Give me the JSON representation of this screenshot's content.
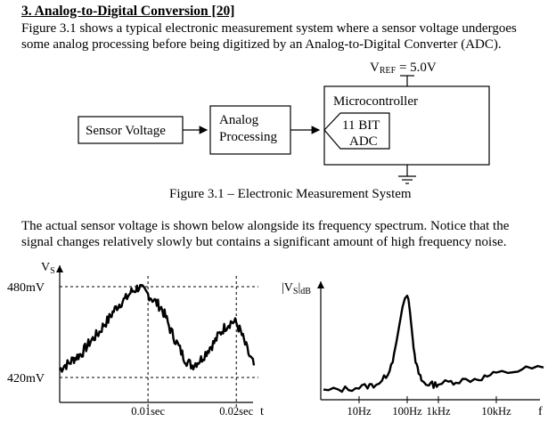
{
  "section": {
    "heading": "3. Analog-to-Digital Conversion [20]",
    "intro_line1": "Figure 3.1 shows a typical electronic measurement system where a sensor voltage undergoes",
    "intro_line2": "some analog processing before being digitized by an Analog-to-Digital Converter (ADC)."
  },
  "diagram": {
    "vref": {
      "main": "V",
      "sub": "REF",
      "rest": " = 5.0V"
    },
    "sensor_block": "Sensor Voltage",
    "analog_line1": "Analog",
    "analog_line2": "Processing",
    "micro_label": "Microcontroller",
    "adc_line1": "11 BIT",
    "adc_line2": "ADC",
    "caption": "Figure 3.1 – Electronic Measurement System"
  },
  "body_text": {
    "line1": "The actual sensor voltage is shown below alongside its frequency spectrum.  Notice that the",
    "line2": "signal changes relatively slowly but contains a significant amount of high frequency noise."
  },
  "chart_data": [
    {
      "type": "line",
      "ylabel_main": "V",
      "ylabel_sub": "S",
      "xlabel": "t",
      "y_ticks": [
        "480mV",
        "420mV"
      ],
      "x_ticks": [
        "0.01sec",
        "0.02sec"
      ],
      "grid": "dashed reference lines at tick values",
      "series": [
        {
          "x": [
            0,
            0.0005,
            0.001,
            0.0015,
            0.002,
            0.0025,
            0.003,
            0.0035,
            0.004,
            0.0045,
            0.005,
            0.0055,
            0.006,
            0.0065,
            0.007,
            0.0075,
            0.008,
            0.0085,
            0.009,
            0.0095,
            0.01,
            0.0105,
            0.011,
            0.0115,
            0.012,
            0.0125,
            0.013,
            0.0135,
            0.014,
            0.0145,
            0.015,
            0.0155,
            0.016,
            0.0165,
            0.017,
            0.0175,
            0.018,
            0.0185,
            0.019,
            0.0195,
            0.02,
            0.0205,
            0.021,
            0.0215,
            0.022
          ],
          "values": [
            425,
            428,
            429,
            432,
            434,
            436,
            440,
            444,
            447,
            450,
            455,
            458,
            463,
            467,
            470,
            472,
            476,
            478,
            480,
            477,
            475,
            472,
            469,
            466,
            460,
            452,
            446,
            440,
            434,
            430,
            428,
            430,
            432,
            436,
            440,
            443,
            448,
            452,
            455,
            457,
            456,
            450,
            442,
            434,
            428
          ]
        }
      ]
    },
    {
      "type": "line",
      "ylabel_main": "|V",
      "ylabel_sub": "S",
      "ylabel_rest": "|",
      "ylabel_unit": "dB",
      "xlabel": "f",
      "x_ticks": [
        "10Hz",
        "100Hz",
        "1kHz",
        "10kHz"
      ],
      "xscale": "log",
      "series": [
        {
          "x": [
            3,
            5,
            7,
            10,
            15,
            20,
            30,
            40,
            50,
            60,
            70,
            80,
            90,
            100,
            110,
            120,
            140,
            160,
            200,
            250,
            300,
            400,
            500,
            700,
            1000,
            1500,
            2000,
            3000,
            5000,
            7000,
            10000,
            15000,
            20000,
            30000
          ],
          "values": [
            -80,
            -79,
            -78,
            -77,
            -76,
            -75,
            -72,
            -65,
            -55,
            -40,
            -25,
            -12,
            -5,
            -3,
            -6,
            -14,
            -30,
            -45,
            -60,
            -68,
            -72,
            -75,
            -74,
            -75,
            -74,
            -73,
            -72,
            -71,
            -70,
            -68,
            -66,
            -64,
            -62,
            -61
          ]
        }
      ]
    }
  ]
}
